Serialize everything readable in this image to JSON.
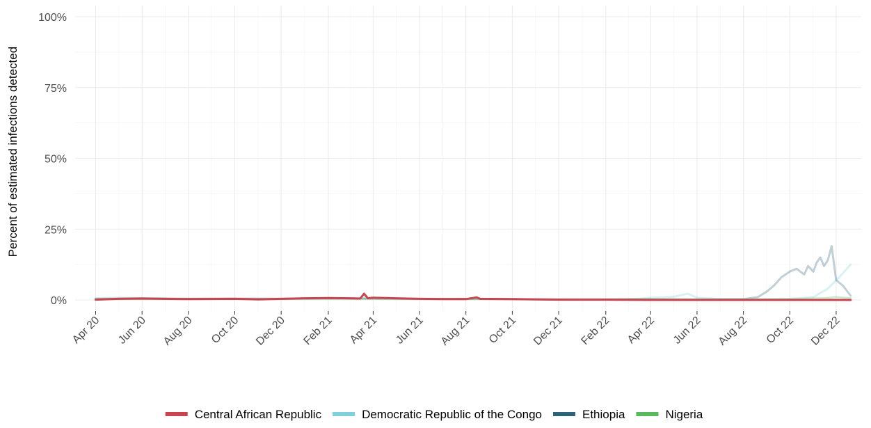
{
  "chart_data": {
    "type": "line",
    "title": "",
    "xlabel": "",
    "ylabel": "Percent of estimated infections detected",
    "ylim": [
      0,
      1
    ],
    "yticks": [
      {
        "value": 0,
        "label": "0%"
      },
      {
        "value": 0.25,
        "label": "25%"
      },
      {
        "value": 0.5,
        "label": "50%"
      },
      {
        "value": 0.75,
        "label": "75%"
      },
      {
        "value": 1,
        "label": "100%"
      }
    ],
    "xlim": [
      "2020-03-05",
      "2023-01-03"
    ],
    "xticks": [
      {
        "date": "2020-04-01",
        "label": "Apr 20"
      },
      {
        "date": "2020-06-01",
        "label": "Jun 20"
      },
      {
        "date": "2020-08-01",
        "label": "Aug 20"
      },
      {
        "date": "2020-10-01",
        "label": "Oct 20"
      },
      {
        "date": "2020-12-01",
        "label": "Dec 20"
      },
      {
        "date": "2021-02-01",
        "label": "Feb 21"
      },
      {
        "date": "2021-04-01",
        "label": "Apr 21"
      },
      {
        "date": "2021-06-01",
        "label": "Jun 21"
      },
      {
        "date": "2021-08-01",
        "label": "Aug 21"
      },
      {
        "date": "2021-10-01",
        "label": "Oct 21"
      },
      {
        "date": "2021-12-01",
        "label": "Dec 21"
      },
      {
        "date": "2022-02-01",
        "label": "Feb 22"
      },
      {
        "date": "2022-04-01",
        "label": "Apr 22"
      },
      {
        "date": "2022-06-01",
        "label": "Jun 22"
      },
      {
        "date": "2022-08-01",
        "label": "Aug 22"
      },
      {
        "date": "2022-10-01",
        "label": "Oct 22"
      },
      {
        "date": "2022-12-01",
        "label": "Dec 22"
      }
    ],
    "grid": true,
    "legend_position": "bottom",
    "series": [
      {
        "name": "Democratic Republic of the Congo",
        "color": "#80d0dc",
        "opacity": 0.3,
        "points": [
          [
            "2020-04-01",
            0.006
          ],
          [
            "2020-05-01",
            0.008
          ],
          [
            "2020-06-01",
            0.006
          ],
          [
            "2020-08-01",
            0.005
          ],
          [
            "2020-10-01",
            0.004
          ],
          [
            "2020-12-01",
            0.004
          ],
          [
            "2021-02-01",
            0.005
          ],
          [
            "2021-04-01",
            0.006
          ],
          [
            "2021-06-01",
            0.004
          ],
          [
            "2021-08-01",
            0.004
          ],
          [
            "2021-10-01",
            0.003
          ],
          [
            "2021-12-01",
            0.002
          ],
          [
            "2022-02-01",
            0.002
          ],
          [
            "2022-03-15",
            0.004
          ],
          [
            "2022-04-01",
            0.008
          ],
          [
            "2022-05-01",
            0.011
          ],
          [
            "2022-05-20",
            0.022
          ],
          [
            "2022-06-01",
            0.008
          ],
          [
            "2022-07-01",
            0.003
          ],
          [
            "2022-08-01",
            0.002
          ],
          [
            "2022-09-01",
            0.003
          ],
          [
            "2022-10-01",
            0.004
          ],
          [
            "2022-11-01",
            0.01
          ],
          [
            "2022-11-20",
            0.04
          ],
          [
            "2022-12-05",
            0.08
          ],
          [
            "2022-12-20",
            0.125
          ]
        ]
      },
      {
        "name": "Ethiopia",
        "color": "#2f6478",
        "opacity": 0.3,
        "points": [
          [
            "2020-04-01",
            0.004
          ],
          [
            "2020-06-01",
            0.006
          ],
          [
            "2020-08-01",
            0.004
          ],
          [
            "2020-10-01",
            0.005
          ],
          [
            "2020-12-01",
            0.004
          ],
          [
            "2021-02-01",
            0.006
          ],
          [
            "2021-04-01",
            0.005
          ],
          [
            "2021-06-01",
            0.004
          ],
          [
            "2021-08-01",
            0.004
          ],
          [
            "2021-10-01",
            0.003
          ],
          [
            "2021-12-01",
            0.002
          ],
          [
            "2022-02-01",
            0.002
          ],
          [
            "2022-04-01",
            0.003
          ],
          [
            "2022-06-01",
            0.002
          ],
          [
            "2022-08-01",
            0.003
          ],
          [
            "2022-08-20",
            0.01
          ],
          [
            "2022-09-01",
            0.03
          ],
          [
            "2022-09-10",
            0.05
          ],
          [
            "2022-09-20",
            0.08
          ],
          [
            "2022-10-01",
            0.1
          ],
          [
            "2022-10-10",
            0.11
          ],
          [
            "2022-10-20",
            0.09
          ],
          [
            "2022-10-25",
            0.12
          ],
          [
            "2022-11-01",
            0.1
          ],
          [
            "2022-11-05",
            0.13
          ],
          [
            "2022-11-10",
            0.15
          ],
          [
            "2022-11-15",
            0.12
          ],
          [
            "2022-11-20",
            0.14
          ],
          [
            "2022-11-25",
            0.19
          ],
          [
            "2022-12-01",
            0.07
          ],
          [
            "2022-12-10",
            0.05
          ],
          [
            "2022-12-20",
            0.015
          ]
        ]
      },
      {
        "name": "Nigeria",
        "color": "#5cb85c",
        "opacity": 0.3,
        "points": [
          [
            "2020-04-01",
            0.003
          ],
          [
            "2020-08-01",
            0.004
          ],
          [
            "2020-12-01",
            0.004
          ],
          [
            "2021-04-01",
            0.004
          ],
          [
            "2021-08-01",
            0.003
          ],
          [
            "2021-12-01",
            0.002
          ],
          [
            "2022-04-01",
            0.002
          ],
          [
            "2022-08-01",
            0.002
          ],
          [
            "2022-10-01",
            0.003
          ],
          [
            "2022-11-15",
            0.006
          ],
          [
            "2022-12-01",
            0.01
          ],
          [
            "2022-12-20",
            0.006
          ]
        ]
      },
      {
        "name": "Central African Republic",
        "color": "#c8444e",
        "opacity": 1,
        "points": [
          [
            "2020-04-01",
            0.001
          ],
          [
            "2020-05-01",
            0.004
          ],
          [
            "2020-06-01",
            0.005
          ],
          [
            "2020-08-01",
            0.003
          ],
          [
            "2020-10-01",
            0.004
          ],
          [
            "2020-11-01",
            0.002
          ],
          [
            "2020-12-01",
            0.004
          ],
          [
            "2021-01-01",
            0.006
          ],
          [
            "2021-02-01",
            0.007
          ],
          [
            "2021-03-01",
            0.006
          ],
          [
            "2021-03-15",
            0.005
          ],
          [
            "2021-03-20",
            0.022
          ],
          [
            "2021-03-25",
            0.006
          ],
          [
            "2021-04-01",
            0.008
          ],
          [
            "2021-05-01",
            0.006
          ],
          [
            "2021-06-01",
            0.004
          ],
          [
            "2021-07-01",
            0.003
          ],
          [
            "2021-08-01",
            0.003
          ],
          [
            "2021-08-15",
            0.009
          ],
          [
            "2021-08-20",
            0.004
          ],
          [
            "2021-10-01",
            0.003
          ],
          [
            "2021-12-01",
            0.001
          ],
          [
            "2022-02-01",
            0.001
          ],
          [
            "2022-04-01",
            0.0
          ],
          [
            "2022-08-01",
            0.0
          ],
          [
            "2022-12-20",
            0.0
          ]
        ]
      }
    ],
    "legend": [
      {
        "name": "Central African Republic",
        "color": "#c8444e"
      },
      {
        "name": "Democratic Republic of the Congo",
        "color": "#80d0dc"
      },
      {
        "name": "Ethiopia",
        "color": "#2f6478"
      },
      {
        "name": "Nigeria",
        "color": "#5cb85c"
      }
    ]
  }
}
